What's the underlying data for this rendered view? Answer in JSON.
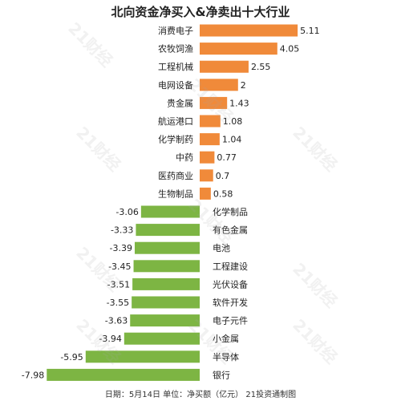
{
  "chart_data": {
    "type": "bar",
    "orientation": "horizontal",
    "title": "北向资金净买入&净卖出十大行业",
    "categories": [
      "消费电子",
      "农牧饲渔",
      "工程机械",
      "电网设备",
      "贵金属",
      "航运港口",
      "化学制药",
      "中药",
      "医药商业",
      "生物制品",
      "化学制品",
      "有色金属",
      "电池",
      "工程建设",
      "光伏设备",
      "软件开发",
      "电子元件",
      "小金属",
      "半导体",
      "银行"
    ],
    "values": [
      5.11,
      4.05,
      2.55,
      2,
      1.43,
      1.08,
      1.04,
      0.77,
      0.7,
      0.58,
      -3.06,
      -3.33,
      -3.39,
      -3.45,
      -3.51,
      -3.55,
      -3.63,
      -3.94,
      -5.95,
      -7.98
    ],
    "value_labels": [
      "5.11",
      "4.05",
      "2.55",
      "2",
      "1.43",
      "1.08",
      "1.04",
      "0.77",
      "0.7",
      "0.58",
      "-3.06",
      "-3.33",
      "-3.39",
      "-3.45",
      "-3.51",
      "-3.55",
      "-3.63",
      "-3.94",
      "-5.95",
      "-7.98"
    ],
    "colors": {
      "positive": "#F08A3A",
      "negative": "#7DB543"
    },
    "grid": false,
    "legend": "none"
  },
  "footer": "日期：5月14日 单位：净买额（亿元） 21投资通制图",
  "watermark": "21财经"
}
